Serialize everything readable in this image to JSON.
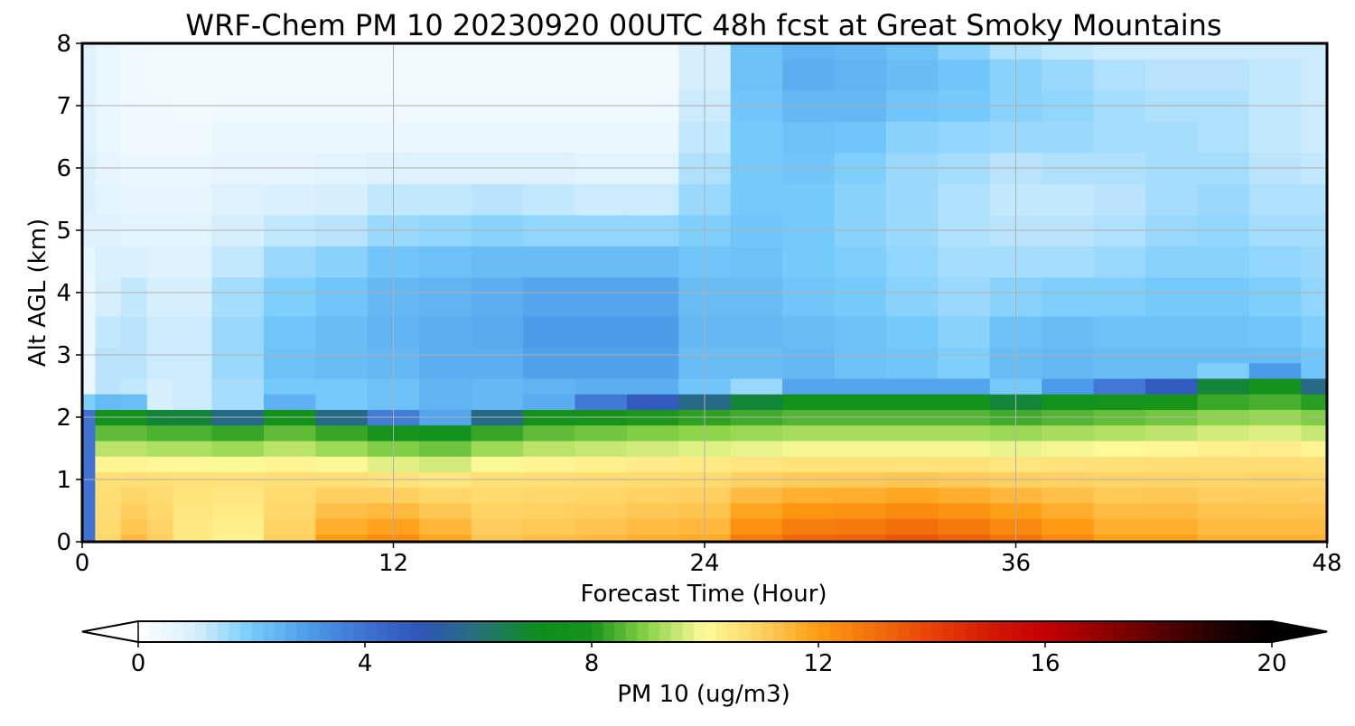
{
  "chart_data": {
    "type": "heatmap",
    "title": "WRF-Chem PM 10  20230920 00UTC 48h fcst at Great Smoky Mountains",
    "xlabel": "Forecast Time (Hour)",
    "ylabel": "Alt AGL (km)",
    "xlim": [
      0,
      48
    ],
    "ylim": [
      0,
      8
    ],
    "x_ticks": [
      0,
      12,
      24,
      36,
      48
    ],
    "y_ticks": [
      0,
      1,
      2,
      3,
      4,
      5,
      6,
      7,
      8
    ],
    "grid": true,
    "x": [
      0,
      1,
      2,
      3,
      4,
      6,
      8,
      10,
      12,
      14,
      16,
      18,
      20,
      22,
      24,
      26,
      28,
      30,
      32,
      34,
      36,
      38,
      40,
      42,
      44,
      46,
      48
    ],
    "y": [
      0,
      0.25,
      0.5,
      0.75,
      1,
      1.25,
      1.5,
      1.75,
      2,
      2.25,
      2.5,
      2.75,
      3,
      3.25,
      3.5,
      3.75,
      4,
      4.5,
      5,
      5.5,
      6,
      6.5,
      7,
      7.5,
      8
    ],
    "surface_values": [
      4.0,
      10.8,
      11.4,
      11.0,
      10.4,
      10.2,
      11.0,
      12.0,
      12.3,
      11.8,
      11.2,
      11.3,
      11.4,
      11.6,
      11.7,
      12.7,
      13.2,
      13.3,
      13.6,
      13.3,
      12.9,
      12.4,
      11.9,
      11.9,
      11.6,
      11.6,
      11.6
    ],
    "mixed_layer_top_km": [
      2.0,
      2.0,
      2.0,
      1.95,
      1.95,
      1.9,
      2.0,
      1.9,
      1.8,
      1.75,
      1.9,
      2.0,
      2.05,
      2.1,
      2.15,
      2.2,
      2.25,
      2.25,
      2.25,
      2.25,
      2.2,
      2.25,
      2.3,
      2.35,
      2.45,
      2.5,
      2.4
    ],
    "upper_values": [
      [
        0.4,
        0.5,
        0.5,
        0.5,
        0.5,
        0.5,
        0.6,
        0.8,
        0.9,
        0.9,
        0.8,
        0.8,
        0.8,
        0.8
      ],
      [
        0.4,
        1.1,
        1.3,
        1.3,
        1.2,
        1.0,
        0.9,
        0.8,
        0.7,
        0.6,
        0.5,
        0.5,
        0.5,
        0.5
      ],
      [
        0.4,
        1.0,
        1.2,
        1.3,
        1.3,
        1.2,
        0.9,
        0.7,
        0.6,
        0.5,
        0.4,
        0.4,
        0.4,
        0.4
      ],
      [
        0.4,
        0.8,
        1.0,
        1.1,
        1.1,
        1.0,
        0.8,
        0.7,
        0.6,
        0.5,
        0.4,
        0.4,
        0.3,
        0.3
      ],
      [
        0.4,
        0.8,
        1.1,
        1.1,
        1.1,
        1.0,
        0.8,
        0.7,
        0.6,
        0.5,
        0.4,
        0.3,
        0.3,
        0.3
      ],
      [
        0.4,
        1.0,
        1.5,
        1.6,
        1.6,
        1.5,
        1.2,
        1.0,
        0.8,
        0.6,
        0.5,
        0.4,
        0.3,
        0.3
      ],
      [
        0.4,
        1.4,
        2.0,
        2.2,
        2.1,
        1.9,
        1.6,
        1.2,
        0.9,
        0.6,
        0.5,
        0.4,
        0.3,
        0.3
      ],
      [
        0.4,
        1.4,
        2.0,
        2.3,
        2.3,
        2.1,
        1.8,
        1.3,
        1.0,
        0.7,
        0.5,
        0.4,
        0.3,
        0.3
      ],
      [
        0.4,
        1.6,
        2.2,
        2.4,
        2.5,
        2.4,
        2.1,
        1.6,
        1.2,
        0.8,
        0.5,
        0.4,
        0.3,
        0.3
      ],
      [
        0.4,
        1.8,
        2.5,
        2.6,
        2.6,
        2.5,
        2.2,
        1.7,
        1.2,
        0.8,
        0.5,
        0.4,
        0.3,
        0.3
      ],
      [
        0.4,
        1.6,
        2.4,
        2.6,
        2.7,
        2.6,
        2.3,
        1.8,
        1.3,
        0.8,
        0.5,
        0.4,
        0.3,
        0.3
      ],
      [
        0.4,
        1.6,
        2.5,
        2.9,
        3.0,
        2.8,
        2.3,
        1.7,
        1.2,
        0.8,
        0.5,
        0.4,
        0.3,
        0.3
      ],
      [
        0.4,
        1.8,
        2.6,
        2.9,
        3.0,
        2.8,
        2.3,
        1.7,
        1.1,
        0.7,
        0.5,
        0.4,
        0.3,
        0.3
      ],
      [
        0.4,
        1.8,
        2.6,
        2.9,
        3.0,
        2.8,
        2.3,
        1.7,
        1.1,
        0.7,
        0.5,
        0.4,
        0.3,
        0.3
      ],
      [
        0.4,
        1.6,
        2.1,
        2.3,
        2.4,
        2.3,
        2.1,
        1.9,
        1.6,
        1.4,
        1.2,
        1.1,
        1.0,
        1.0
      ],
      [
        0.4,
        1.6,
        2.1,
        2.3,
        2.4,
        2.3,
        2.2,
        2.1,
        2.0,
        2.0,
        2.0,
        2.1,
        2.2,
        2.2
      ],
      [
        0.4,
        1.8,
        2.3,
        2.4,
        2.3,
        2.1,
        2.0,
        2.0,
        2.0,
        2.1,
        2.2,
        2.4,
        2.6,
        2.5
      ],
      [
        0.4,
        1.8,
        2.2,
        2.2,
        2.2,
        2.0,
        1.9,
        1.8,
        1.8,
        1.9,
        2.1,
        2.4,
        2.5,
        2.4
      ],
      [
        0.4,
        1.8,
        2.2,
        2.1,
        2.0,
        1.8,
        1.7,
        1.6,
        1.6,
        1.6,
        1.8,
        2.1,
        2.3,
        2.2
      ],
      [
        0.4,
        1.8,
        2.0,
        1.9,
        1.8,
        1.6,
        1.5,
        1.4,
        1.4,
        1.5,
        1.7,
        2.0,
        2.1,
        1.8
      ],
      [
        0.4,
        2.0,
        2.4,
        2.3,
        2.2,
        1.8,
        1.5,
        1.3,
        1.2,
        1.3,
        1.6,
        1.8,
        1.8,
        1.4
      ],
      [
        0.4,
        2.1,
        2.5,
        2.4,
        2.3,
        1.9,
        1.5,
        1.3,
        1.2,
        1.4,
        1.6,
        1.7,
        1.6,
        1.2
      ],
      [
        0.4,
        2.0,
        2.4,
        2.3,
        2.2,
        1.9,
        1.6,
        1.4,
        1.3,
        1.4,
        1.5,
        1.5,
        1.4,
        1.1
      ],
      [
        0.4,
        1.9,
        2.3,
        2.3,
        2.2,
        2.0,
        1.8,
        1.6,
        1.5,
        1.5,
        1.5,
        1.4,
        1.3,
        1.1
      ],
      [
        0.4,
        1.9,
        2.3,
        2.3,
        2.2,
        2.0,
        1.8,
        1.7,
        1.6,
        1.5,
        1.4,
        1.4,
        1.3,
        1.1
      ],
      [
        0.4,
        2.1,
        2.4,
        2.3,
        2.1,
        1.9,
        1.7,
        1.5,
        1.4,
        1.3,
        1.2,
        1.2,
        1.2,
        1.1
      ],
      [
        0.4,
        2.4,
        2.3,
        2.1,
        1.9,
        1.7,
        1.6,
        1.5,
        1.4,
        1.2,
        1.1,
        1.1,
        1.1,
        1.1
      ]
    ],
    "colorbar": {
      "label": "PM 10  (ug/m3)",
      "min": 0,
      "max": 20,
      "ticks": [
        0,
        4,
        8,
        12,
        16,
        20
      ],
      "extend": "both",
      "extend_colors": [
        "#ffffff",
        "#000000"
      ],
      "color_stops": [
        [
          0,
          "#ffffff"
        ],
        [
          1,
          "#d6effd"
        ],
        [
          2,
          "#74cbfb"
        ],
        [
          3,
          "#4b9ce8"
        ],
        [
          4,
          "#3f72d2"
        ],
        [
          5,
          "#2d55b6"
        ],
        [
          6,
          "#25717a"
        ],
        [
          7,
          "#0d8c20"
        ],
        [
          8,
          "#16941a"
        ],
        [
          9,
          "#8cd44a"
        ],
        [
          10,
          "#fffa9b"
        ],
        [
          11,
          "#ffd060"
        ],
        [
          12,
          "#ff9c12"
        ],
        [
          13,
          "#f26f0b"
        ],
        [
          14,
          "#e84208"
        ],
        [
          15,
          "#d31b03"
        ],
        [
          16,
          "#c40000"
        ],
        [
          17,
          "#900000"
        ],
        [
          18,
          "#5a0000"
        ],
        [
          19,
          "#240000"
        ],
        [
          20,
          "#000000"
        ]
      ]
    }
  }
}
